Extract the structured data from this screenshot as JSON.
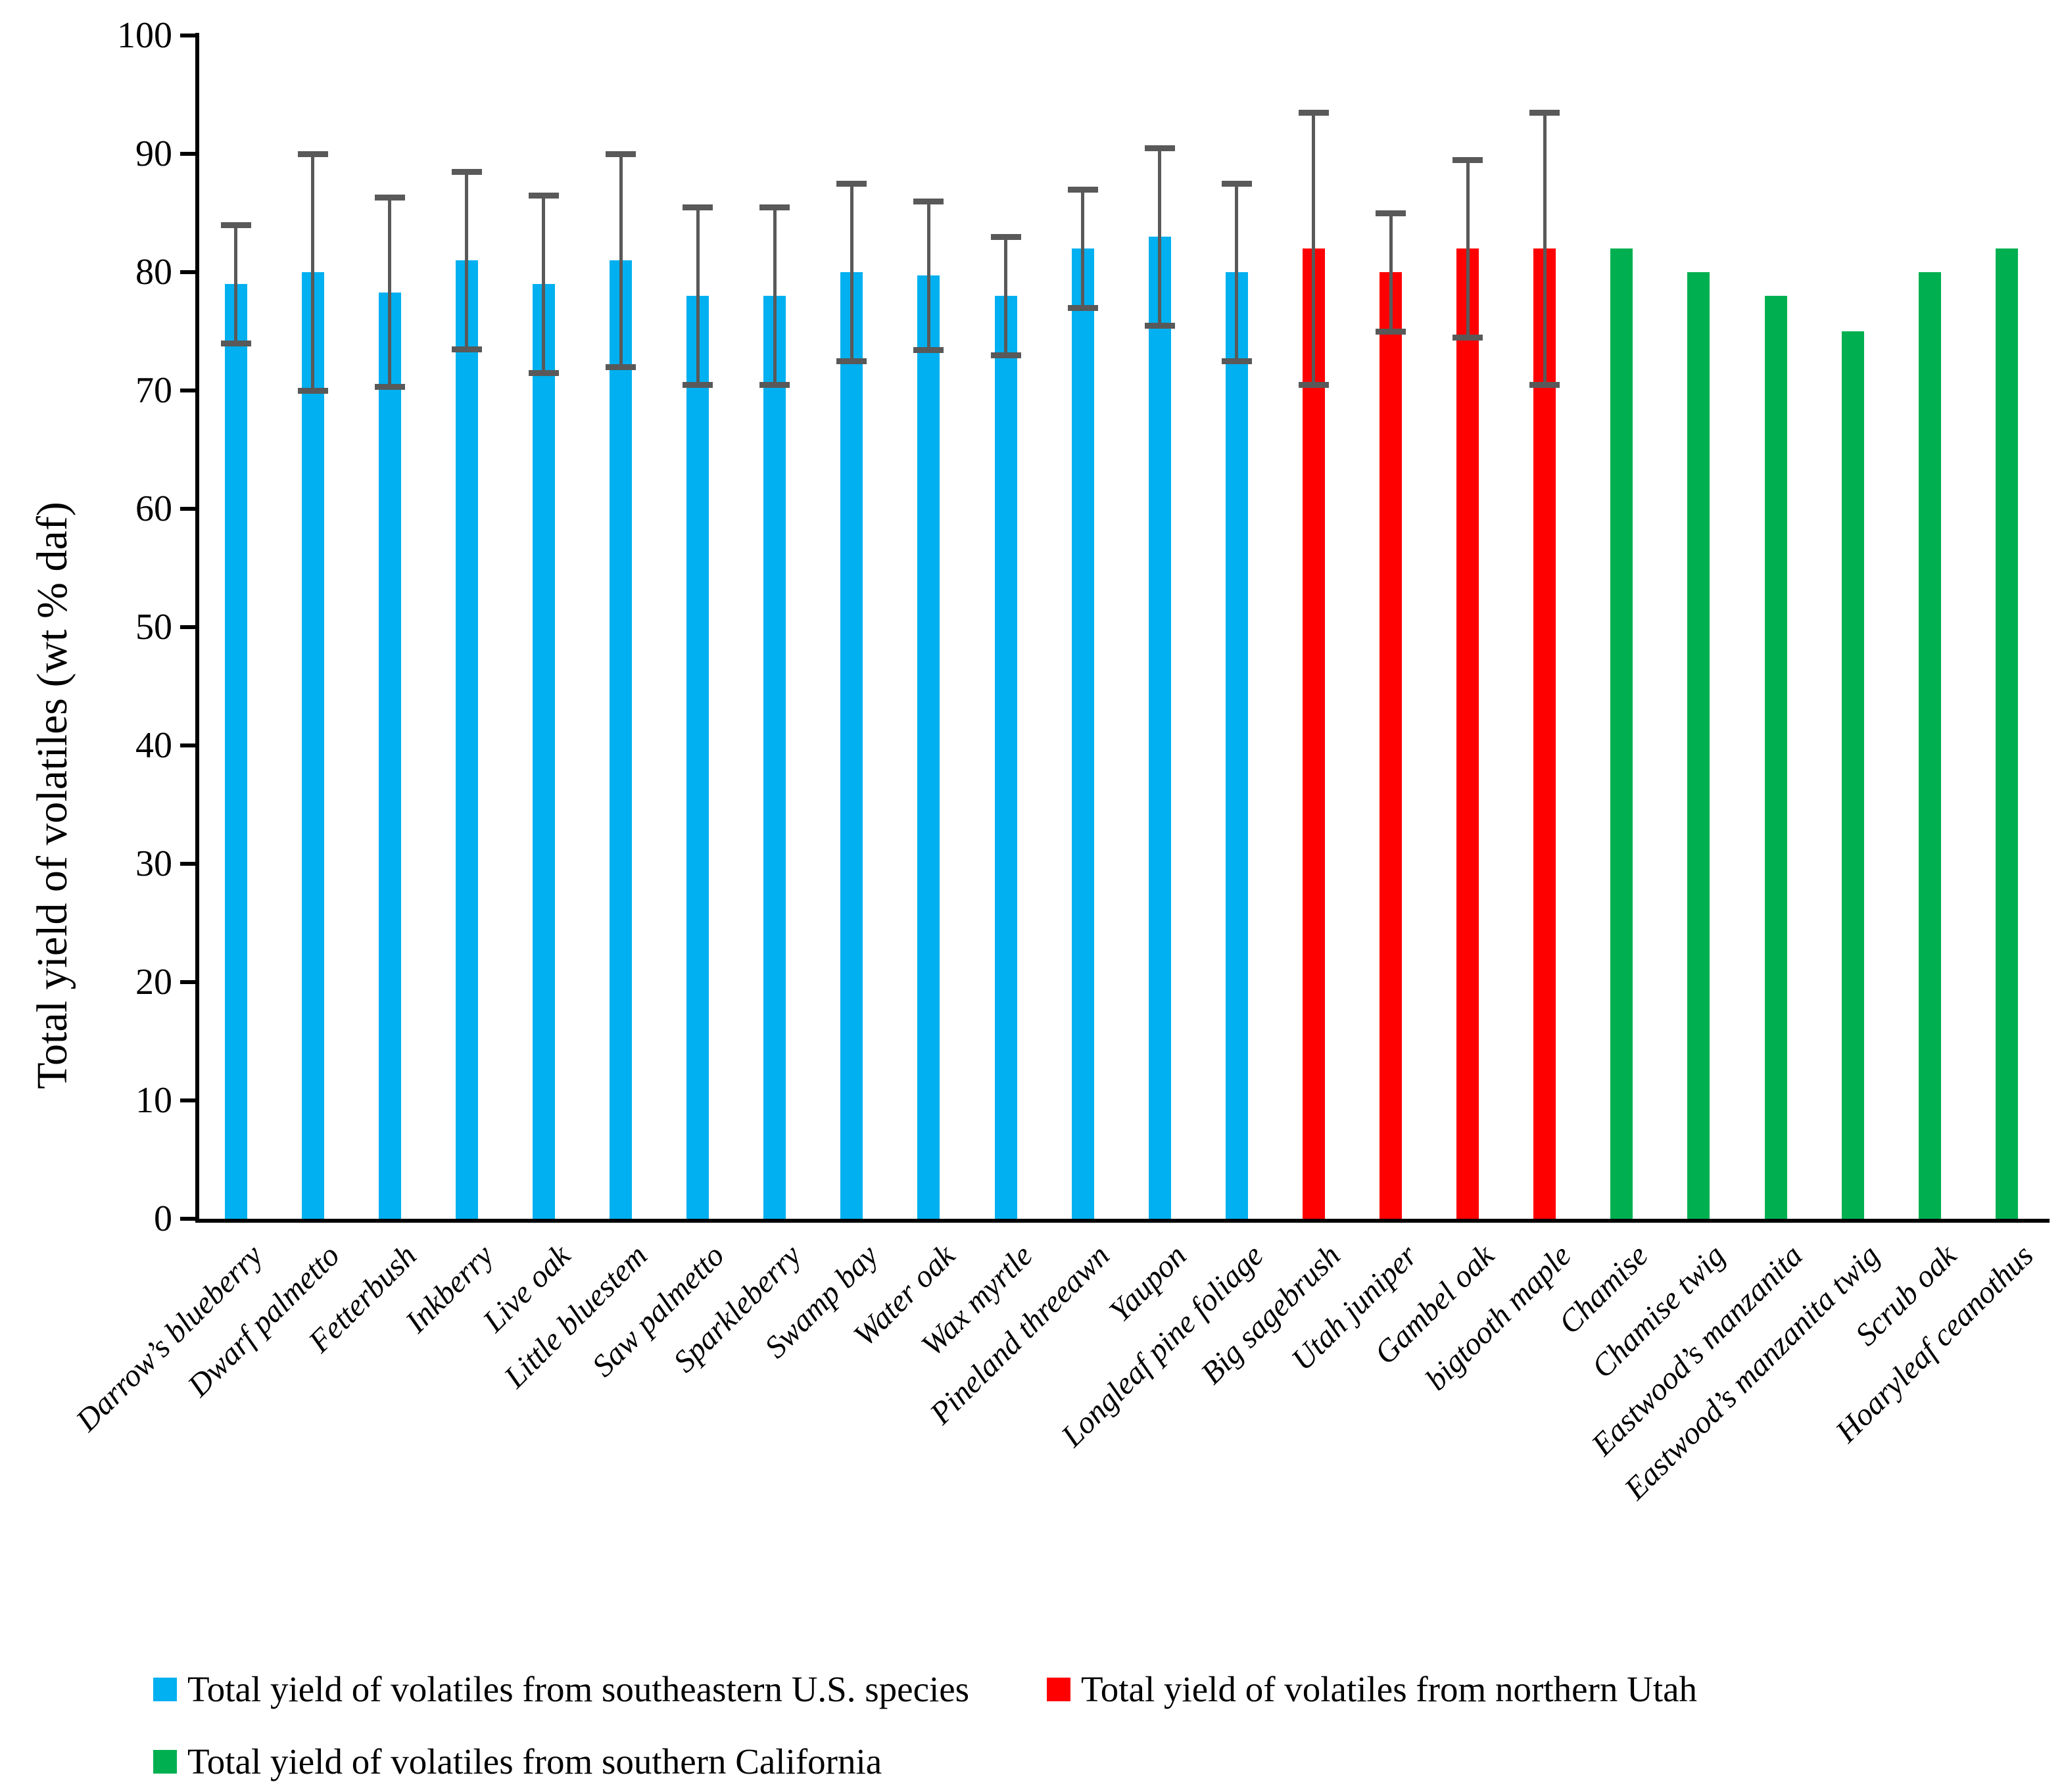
{
  "chart_data": {
    "type": "bar",
    "title": "",
    "xlabel": "",
    "ylabel": "Total yield of volatiles (wt % daf)",
    "ylim": [
      0,
      100
    ],
    "ytick_interval": 10,
    "ytick_labels": [
      "0",
      "10",
      "20",
      "30",
      "40",
      "50",
      "60",
      "70",
      "80",
      "90",
      "100"
    ],
    "grid": false,
    "axis_color": "#000000",
    "error_bar_color": "#595959",
    "legend_position": "bottom",
    "legend": [
      {
        "label": "Total yield of volatiles from southeastern U.S. species",
        "color": "#00B0F0"
      },
      {
        "label": "Total yield of volatiles from northern Utah",
        "color": "#FF0000"
      },
      {
        "label": "Total yield of volatiles from southern California",
        "color": "#00B050"
      }
    ],
    "categories": [
      "Darrow’s blueberry",
      "Dwarf palmetto",
      "Fetterbush",
      "Inkberry",
      "Live oak",
      "Little bluestem",
      "Saw palmetto",
      "Sparkleberry",
      "Swamp bay",
      "Water oak",
      "Wax myrtle",
      "Pineland threeawn",
      "Yaupon",
      "Longleaf pine foliage",
      "Big sagebrush",
      "Utah juniper",
      "Gambel oak",
      "bigtooth maple",
      "Chamise",
      "Chamise twig",
      "Eastwood’s manzanita",
      "Eastwood’s manzanita twig",
      "Scrub oak",
      "Hoaryleaf ceanothus"
    ],
    "bars": [
      {
        "category": "Darrow’s blueberry",
        "value": 79,
        "error": 5,
        "series": 0
      },
      {
        "category": "Dwarf palmetto",
        "value": 80,
        "error": 10,
        "series": 0
      },
      {
        "category": "Fetterbush",
        "value": 78.3,
        "error": 8,
        "series": 0
      },
      {
        "category": "Inkberry",
        "value": 81,
        "error": 7.5,
        "series": 0
      },
      {
        "category": "Live oak",
        "value": 79,
        "error": 7.5,
        "series": 0
      },
      {
        "category": "Little bluestem",
        "value": 81,
        "error": 9,
        "series": 0
      },
      {
        "category": "Saw palmetto",
        "value": 78,
        "error": 7.5,
        "series": 0
      },
      {
        "category": "Sparkleberry",
        "value": 78,
        "error": 7.5,
        "series": 0
      },
      {
        "category": "Swamp bay",
        "value": 80,
        "error": 7.5,
        "series": 0
      },
      {
        "category": "Water oak",
        "value": 79.7,
        "error": 6.3,
        "series": 0
      },
      {
        "category": "Wax myrtle",
        "value": 78,
        "error": 5,
        "series": 0
      },
      {
        "category": "Pineland threeawn",
        "value": 82,
        "error": 5,
        "series": 0
      },
      {
        "category": "Yaupon",
        "value": 83,
        "error": 7.5,
        "series": 0
      },
      {
        "category": "Longleaf pine foliage",
        "value": 80,
        "error": 7.5,
        "series": 0
      },
      {
        "category": "Big sagebrush",
        "value": 82,
        "error": 11.5,
        "series": 1
      },
      {
        "category": "Utah juniper",
        "value": 80,
        "error": 5,
        "series": 1
      },
      {
        "category": "Gambel oak",
        "value": 82,
        "error": 7.5,
        "series": 1
      },
      {
        "category": "bigtooth maple",
        "value": 82,
        "error": 11.5,
        "series": 1
      },
      {
        "category": "Chamise",
        "value": 82,
        "error": null,
        "series": 2
      },
      {
        "category": "Chamise twig",
        "value": 80,
        "error": null,
        "series": 2
      },
      {
        "category": "Eastwood’s manzanita",
        "value": 78,
        "error": null,
        "series": 2
      },
      {
        "category": "Eastwood’s manzanita twig",
        "value": 75,
        "error": null,
        "series": 2
      },
      {
        "category": "Scrub oak",
        "value": 80,
        "error": null,
        "series": 2
      },
      {
        "category": "Hoaryleaf ceanothus",
        "value": 82,
        "error": null,
        "series": 2
      }
    ]
  }
}
